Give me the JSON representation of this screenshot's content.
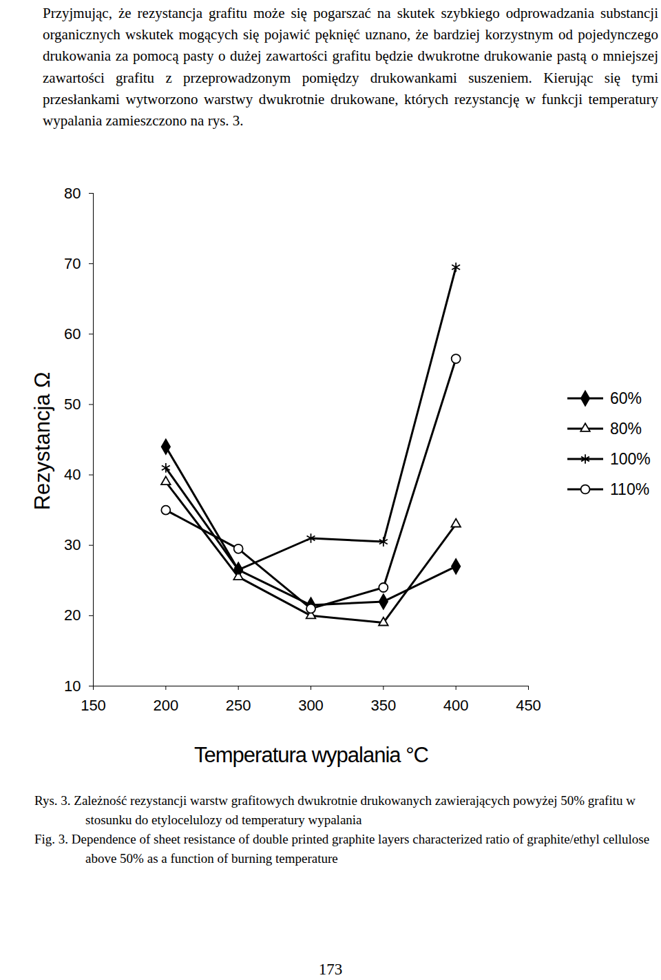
{
  "paragraph": "Przyjmując, że rezystancja grafitu może się pogarszać na skutek szybkiego odprowadzania substancji organicznych wskutek mogących się pojawić pęknięć uznano, że bardziej korzystnym od pojedynczego drukowania za pomocą pasty o dużej zawartości grafitu będzie dwukrotne drukowanie pastą o mniejszej zawartości grafitu z przeprowadzonym pomiędzy drukowankami suszeniem. Kierując się tymi przesłankami wytworzono warstwy dwukrotnie drukowane, których rezystancję w funkcji temperatury wypalania zamieszczono na rys. 3.",
  "chart_data": {
    "type": "line",
    "x_label": "Temperatura wypalania °C",
    "y_label": "Rezystancja Ω",
    "x": [
      200,
      250,
      300,
      350,
      400
    ],
    "series": [
      {
        "name": "60%",
        "color": "#000000",
        "marker": "diamond",
        "values": [
          44,
          26.5,
          21.5,
          22,
          27
        ]
      },
      {
        "name": "80%",
        "color": "#000000",
        "marker": "triangle-open",
        "values": [
          39,
          25.5,
          20,
          19,
          33
        ]
      },
      {
        "name": "100%",
        "color": "#000000",
        "marker": "asterisk",
        "values": [
          41,
          26.5,
          31,
          30.5,
          69.5
        ]
      },
      {
        "name": "110%",
        "color": "#000000",
        "marker": "circle-open",
        "values": [
          35,
          29.5,
          21,
          24,
          56.5
        ]
      }
    ],
    "xlim": [
      150,
      450
    ],
    "xticks": [
      150,
      200,
      250,
      300,
      350,
      400,
      450
    ],
    "ylim": [
      10,
      80
    ],
    "yticks": [
      10,
      20,
      30,
      40,
      50,
      60,
      70,
      80
    ],
    "grid": false,
    "legend": "right"
  },
  "caption": [
    {
      "label": "Rys. 3.",
      "text": "Zależność rezystancji warstw grafitowych dwukrotnie drukowanych zawierających powyżej 50% grafitu w stosunku do etylocelulozy od temperatury wypalania"
    },
    {
      "label": "Fig. 3.",
      "text": "Dependence of sheet resistance of double printed graphite layers characterized ratio of graphite/ethyl cellulose above 50% as a function of burning temperature"
    }
  ],
  "page_number": "173"
}
